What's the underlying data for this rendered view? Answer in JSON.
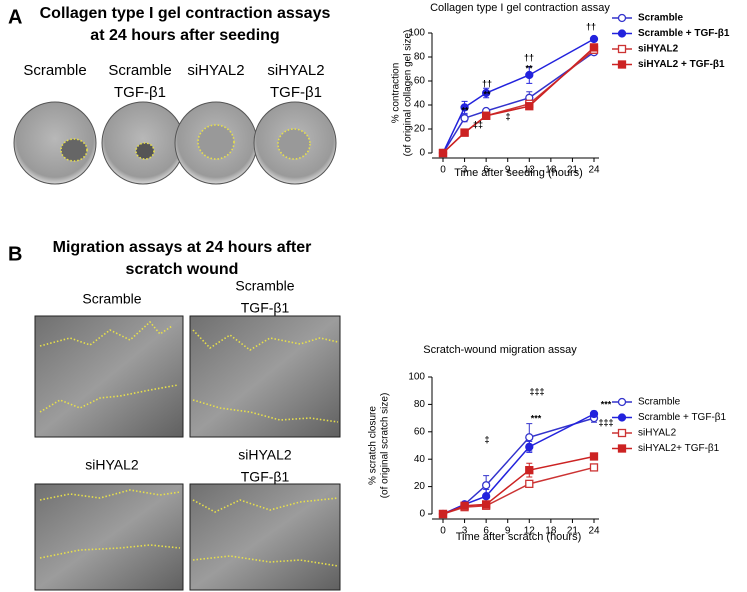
{
  "figure": {
    "panel_a": {
      "label": "A",
      "title": [
        "Collagen type I gel contraction assays",
        "at 24 hours after seeding"
      ],
      "image_labels": [
        [
          "Scramble"
        ],
        [
          "Scramble",
          "TGF-β1"
        ],
        [
          "siHYAL2"
        ],
        [
          "siHYAL2",
          "TGF-β1"
        ]
      ]
    },
    "panel_b": {
      "label": "B",
      "title": [
        "Migration assays at 24 hours after",
        "scratch wound"
      ],
      "image_labels": [
        [
          "Scramble"
        ],
        [
          "Scramble",
          "TGF-β1"
        ],
        [
          "siHYAL2"
        ],
        [
          "siHYAL2",
          "TGF-β1"
        ]
      ]
    }
  },
  "chart_data": [
    {
      "type": "line",
      "title": "Collagen type I gel contraction assay",
      "ylabel": [
        "% contraction",
        "(of original collagen gel size)"
      ],
      "xlabel": "Time after seeding (hours)",
      "x": [
        0,
        3,
        6,
        12,
        24
      ],
      "xticks": [
        0,
        3,
        6,
        9,
        12,
        18,
        21,
        24
      ],
      "ylim": [
        0,
        100
      ],
      "yticks": [
        0,
        20,
        40,
        60,
        80,
        100
      ],
      "legend": "right",
      "series": [
        {
          "name": "Scramble",
          "color": "#3333cc",
          "marker": "circle",
          "filled": false,
          "values": [
            0,
            29,
            35,
            46,
            84
          ],
          "errors": [
            0,
            3,
            1,
            5,
            2
          ]
        },
        {
          "name": "Scramble + TGF-β1",
          "color": "#2222dd",
          "marker": "circle",
          "filled": true,
          "values": [
            0,
            38,
            50,
            65,
            95
          ],
          "errors": [
            0,
            5,
            4,
            7,
            1
          ]
        },
        {
          "name": "siHYAL2",
          "color": "#cc3333",
          "marker": "square",
          "filled": false,
          "values": [
            0,
            17,
            31,
            41,
            86
          ],
          "errors": [
            0,
            2,
            1,
            2,
            3
          ]
        },
        {
          "name": "siHYAL2 + TGF-β1",
          "color": "#cc2222",
          "marker": "square",
          "filled": true,
          "values": [
            0,
            17,
            31,
            39,
            88
          ],
          "errors": [
            0,
            2,
            1,
            2,
            2
          ]
        }
      ],
      "annotations": [
        "**",
        "‡‡",
        "††",
        "**",
        "‡",
        "††",
        "**",
        "††"
      ]
    },
    {
      "type": "line",
      "title": "Scratch-wound migration assay",
      "ylabel": [
        "% scratch closure",
        "(of original scratch size)"
      ],
      "xlabel": "Time after scratch (hours)",
      "x": [
        0,
        3,
        6,
        12,
        24
      ],
      "xticks": [
        0,
        3,
        6,
        9,
        12,
        18,
        21,
        24
      ],
      "ylim": [
        0,
        100
      ],
      "yticks": [
        0,
        20,
        40,
        60,
        80,
        100
      ],
      "legend": "right",
      "series": [
        {
          "name": "Scramble",
          "color": "#3333cc",
          "marker": "circle",
          "filled": false,
          "values": [
            0,
            7,
            21,
            56,
            70
          ],
          "errors": [
            0,
            1,
            7,
            10,
            3
          ]
        },
        {
          "name": "Scramble + TGF-β1",
          "color": "#2222dd",
          "marker": "circle",
          "filled": true,
          "values": [
            0,
            7,
            13,
            49,
            73
          ],
          "errors": [
            0,
            1,
            5,
            4,
            2
          ]
        },
        {
          "name": "siHYAL2",
          "color": "#cc3333",
          "marker": "square",
          "filled": false,
          "values": [
            0,
            5,
            6,
            22,
            34
          ],
          "errors": [
            0,
            1,
            1,
            1,
            1
          ]
        },
        {
          "name": "siHYAL2+ TGF-β1",
          "color": "#cc2222",
          "marker": "square",
          "filled": true,
          "values": [
            0,
            6,
            7,
            32,
            42
          ],
          "errors": [
            0,
            1,
            1,
            5,
            2
          ]
        }
      ],
      "annotations": [
        "‡",
        "‡‡‡",
        "***",
        "***",
        "‡‡‡"
      ]
    }
  ]
}
